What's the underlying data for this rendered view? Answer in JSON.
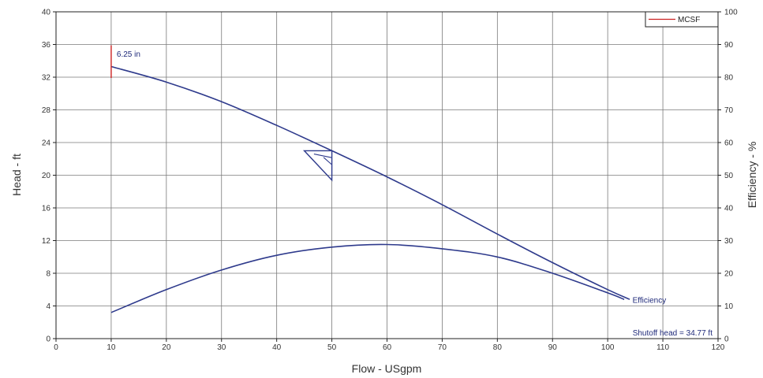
{
  "chart_data": {
    "type": "line",
    "xlabel": "Flow - USgpm",
    "ylabel": "Head - ft",
    "y2label": "Efficiency - %",
    "xlim": [
      0,
      120
    ],
    "ylim": [
      0,
      40
    ],
    "y2lim": [
      0,
      100
    ],
    "x_ticks": [
      0,
      10,
      20,
      30,
      40,
      50,
      60,
      70,
      80,
      90,
      100,
      110,
      120
    ],
    "y_ticks": [
      0,
      4,
      8,
      12,
      16,
      20,
      24,
      28,
      32,
      36,
      40
    ],
    "y2_ticks": [
      0,
      10,
      20,
      30,
      40,
      50,
      60,
      70,
      80,
      90,
      100
    ],
    "grid": true,
    "legend": {
      "position": "top-right",
      "entries": [
        {
          "name": "MCSF",
          "color": "#cc2222"
        }
      ]
    },
    "series": [
      {
        "name": "6.25 in",
        "axis": "head",
        "color": "#2e3a8c",
        "x": [
          10,
          20,
          30,
          40,
          50,
          60,
          70,
          80,
          90,
          100,
          104
        ],
        "y": [
          33.3,
          31.4,
          29.0,
          26.1,
          23.0,
          19.8,
          16.4,
          12.8,
          9.3,
          6.0,
          4.8
        ]
      },
      {
        "name": "Efficiency",
        "axis": "efficiency",
        "color": "#2e3a8c",
        "x": [
          10,
          20,
          30,
          40,
          50,
          60,
          70,
          80,
          90,
          100,
          103
        ],
        "y": [
          8.0,
          15.0,
          21.0,
          25.5,
          28.0,
          28.8,
          27.5,
          25.0,
          20.0,
          14.0,
          12.0
        ]
      }
    ],
    "mcsf_marker": {
      "x": 10,
      "y_range": [
        31.9,
        35.9
      ],
      "color": "#cc2222"
    },
    "bep_marker": {
      "x": [
        45,
        50,
        50
      ],
      "y": [
        23.0,
        23.0,
        19.4
      ],
      "color": "#2e3a8c"
    },
    "annotations": [
      {
        "text": "6.25 in",
        "x": 11,
        "y": 34.5
      },
      {
        "text": "Efficiency",
        "x": 104.5,
        "y": 4.4
      },
      {
        "text": "Shutoff head = 34.77 ft",
        "x": 119,
        "y": 0.4
      }
    ]
  }
}
